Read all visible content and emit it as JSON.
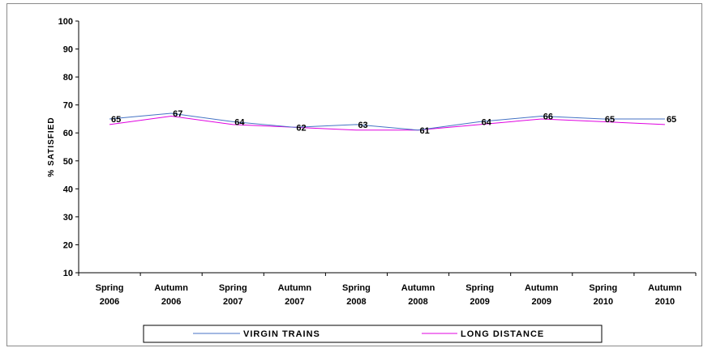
{
  "chart_data": {
    "type": "line",
    "title": "",
    "xlabel": "",
    "ylabel": "% SATISFIED",
    "ylim": [
      10,
      100
    ],
    "yticks": [
      "10",
      "20",
      "30",
      "40",
      "50",
      "60",
      "70",
      "80",
      "90",
      "100"
    ],
    "categories": [
      [
        "Spring",
        "2006"
      ],
      [
        "Autumn",
        "2006"
      ],
      [
        "Spring",
        "2007"
      ],
      [
        "Autumn",
        "2007"
      ],
      [
        "Spring",
        "2008"
      ],
      [
        "Autumn",
        "2008"
      ],
      [
        "Spring",
        "2009"
      ],
      [
        "Autumn",
        "2009"
      ],
      [
        "Spring",
        "2010"
      ],
      [
        "Autumn",
        "2010"
      ]
    ],
    "series": [
      {
        "name": "VIRGIN TRAINS",
        "color": "#4472C4",
        "values": [
          65,
          67,
          64,
          62,
          63,
          61,
          64,
          66,
          65,
          65
        ],
        "labeled": true
      },
      {
        "name": "LONG DISTANCE",
        "color": "#E000E0",
        "values": [
          63,
          66,
          63,
          62,
          61,
          61,
          63,
          65,
          64,
          63
        ],
        "labeled": false
      }
    ],
    "grid": false,
    "legend_position": "bottom"
  }
}
